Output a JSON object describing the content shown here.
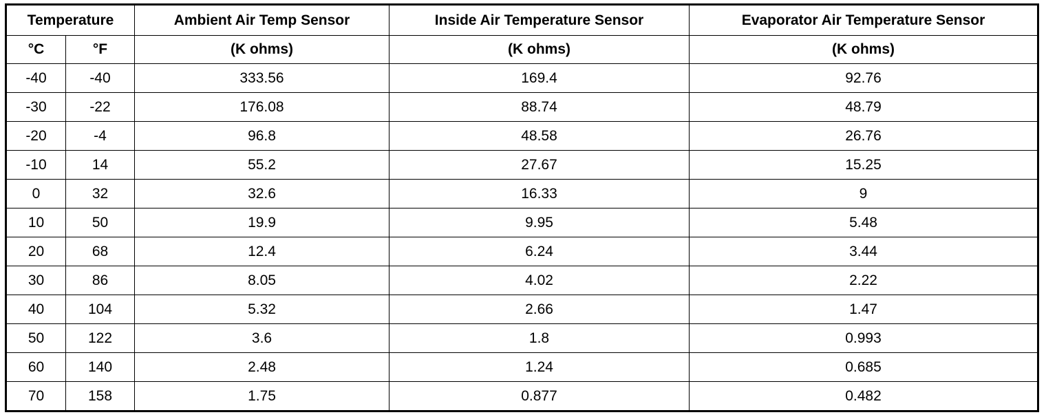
{
  "table": {
    "header": {
      "temperature": "Temperature",
      "columns": [
        "Ambient Air Temp Sensor",
        "Inside Air Temperature Sensor",
        "Evaporator Air Temperature Sensor"
      ],
      "units": [
        "°C",
        "°F",
        "(K ohms)",
        "(K ohms)",
        "(K ohms)"
      ]
    },
    "rows": [
      [
        "-40",
        "-40",
        "333.56",
        "169.4",
        "92.76"
      ],
      [
        "-30",
        "-22",
        "176.08",
        "88.74",
        "48.79"
      ],
      [
        "-20",
        "-4",
        "96.8",
        "48.58",
        "26.76"
      ],
      [
        "-10",
        "14",
        "55.2",
        "27.67",
        "15.25"
      ],
      [
        "0",
        "32",
        "32.6",
        "16.33",
        "9"
      ],
      [
        "10",
        "50",
        "19.9",
        "9.95",
        "5.48"
      ],
      [
        "20",
        "68",
        "12.4",
        "6.24",
        "3.44"
      ],
      [
        "30",
        "86",
        "8.05",
        "4.02",
        "2.22"
      ],
      [
        "40",
        "104",
        "5.32",
        "2.66",
        "1.47"
      ],
      [
        "50",
        "122",
        "3.6",
        "1.8",
        "0.993"
      ],
      [
        "60",
        "140",
        "2.48",
        "1.24",
        "0.685"
      ],
      [
        "70",
        "158",
        "1.75",
        "0.877",
        "0.482"
      ]
    ]
  }
}
